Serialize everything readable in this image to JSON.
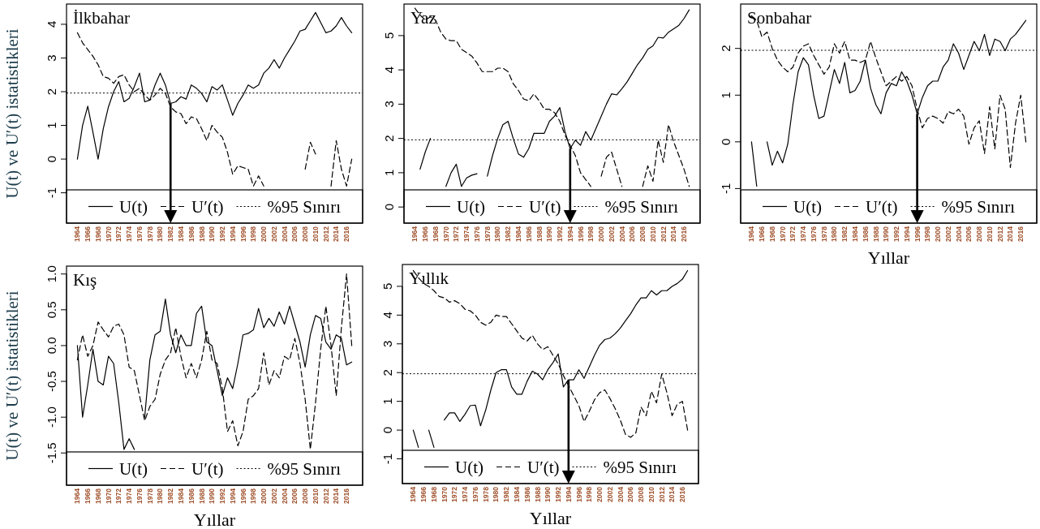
{
  "chart_data": [
    {
      "type": "line",
      "title": "İlkbahar",
      "ylabel": "U(t) ve U′(t) istatistikleri",
      "x": [
        1964,
        1965,
        1966,
        1967,
        1968,
        1969,
        1970,
        1971,
        1972,
        1973,
        1974,
        1975,
        1976,
        1977,
        1978,
        1979,
        1980,
        1981,
        1982,
        1983,
        1984,
        1985,
        1986,
        1987,
        1988,
        1989,
        1990,
        1991,
        1992,
        1993,
        1994,
        1995,
        1996,
        1997,
        1998,
        1999,
        2000,
        2001,
        2002,
        2003,
        2004,
        2005,
        2006,
        2007,
        2008,
        2009,
        2010,
        2011,
        2012,
        2013,
        2014,
        2015,
        2016,
        2017
      ],
      "xlim": [
        1961.9,
        2019.1
      ],
      "xticks": [
        1964,
        1966,
        1968,
        1970,
        1972,
        1974,
        1976,
        1978,
        1980,
        1982,
        1984,
        1986,
        1988,
        1990,
        1992,
        1994,
        1996,
        1998,
        2000,
        2002,
        2004,
        2006,
        2008,
        2010,
        2012,
        2014,
        2016
      ],
      "ylim": [
        -1.9,
        4.6
      ],
      "yticks": [
        -1,
        0,
        1,
        2,
        3,
        4
      ],
      "legend": "bottom",
      "ref_lines": [
        {
          "axis": "y",
          "value": 1.96,
          "label": "%95 Sınırı",
          "line_style": "dotted",
          "color": "#000000"
        },
        {
          "axis": "x",
          "value": 1982,
          "color": "#000000"
        }
      ],
      "series": [
        {
          "name": "U(t)",
          "color": "#000000",
          "line_style": "solid",
          "values": [
            0,
            1.0,
            1.57,
            0.8,
            0,
            0.9,
            1.55,
            2.0,
            2.3,
            1.7,
            1.8,
            2.15,
            2.55,
            1.7,
            1.75,
            2.2,
            2.55,
            2.2,
            1.65,
            1.7,
            1.85,
            1.78,
            2.2,
            2.1,
            1.95,
            1.7,
            2.15,
            2.05,
            2.2,
            1.75,
            1.3,
            1.65,
            1.9,
            2.2,
            2.1,
            2.2,
            2.55,
            2.7,
            2.95,
            2.7,
            3.0,
            3.25,
            3.5,
            3.8,
            3.85,
            4.1,
            4.35,
            4.05,
            3.75,
            3.8,
            3.95,
            4.2,
            3.95,
            3.75
          ]
        },
        {
          "name": "U′(t)",
          "color": "#000000",
          "line_style": "dashed",
          "values": [
            3.75,
            3.45,
            3.25,
            3.05,
            2.8,
            2.45,
            2.4,
            2.25,
            2.45,
            2.5,
            2.2,
            2.0,
            2.1,
            1.9,
            1.75,
            1.9,
            2.1,
            1.95,
            1.55,
            1.4,
            1.35,
            1.05,
            1.25,
            1.2,
            0.9,
            0.55,
            1.0,
            0.8,
            0.65,
            0.2,
            -0.45,
            -0.2,
            -0.25,
            -0.3,
            -0.8,
            -0.5,
            -0.8,
            null,
            null,
            null,
            null,
            null,
            null,
            null,
            -0.3,
            0.5,
            0.15,
            null,
            null,
            -0.8,
            0.55,
            -0.3,
            -0.8,
            0.0
          ]
        }
      ]
    },
    {
      "type": "line",
      "title": "Yaz",
      "x": [
        1964,
        1965,
        1966,
        1967,
        1968,
        1969,
        1970,
        1971,
        1972,
        1973,
        1974,
        1975,
        1976,
        1977,
        1978,
        1979,
        1980,
        1981,
        1982,
        1983,
        1984,
        1985,
        1986,
        1987,
        1988,
        1989,
        1990,
        1991,
        1992,
        1993,
        1994,
        1995,
        1996,
        1997,
        1998,
        1999,
        2000,
        2001,
        2002,
        2003,
        2004,
        2005,
        2006,
        2007,
        2008,
        2009,
        2010,
        2011,
        2012,
        2013,
        2014,
        2015,
        2016,
        2017
      ],
      "xlim": [
        1961.9,
        2019.1
      ],
      "xticks": [
        1964,
        1966,
        1968,
        1970,
        1972,
        1974,
        1976,
        1978,
        1980,
        1982,
        1984,
        1986,
        1988,
        1990,
        1992,
        1994,
        1996,
        1998,
        2000,
        2002,
        2004,
        2006,
        2008,
        2010,
        2012,
        2014,
        2016
      ],
      "ylim": [
        -0.47,
        5.92
      ],
      "yticks": [
        0,
        1,
        2,
        3,
        4,
        5
      ],
      "legend": "bottom",
      "ref_lines": [
        {
          "axis": "y",
          "value": 1.96,
          "label": "%95 Sınırı",
          "line_style": "dotted",
          "color": "#000000"
        },
        {
          "axis": "x",
          "value": 1994,
          "color": "#000000"
        }
      ],
      "series": [
        {
          "name": "U(t)",
          "color": "#000000",
          "line_style": "solid",
          "values": [
            null,
            1.1,
            1.6,
            2.0,
            null,
            null,
            0.6,
            1.0,
            1.25,
            0.6,
            0.85,
            0.93,
            0.97,
            null,
            0.9,
            1.5,
            2.0,
            2.4,
            2.5,
            2.0,
            1.55,
            1.45,
            1.7,
            2.15,
            2.15,
            2.15,
            2.5,
            2.65,
            2.9,
            2.2,
            1.7,
            1.95,
            1.8,
            2.2,
            1.95,
            2.3,
            2.65,
            3.0,
            3.3,
            3.27,
            3.45,
            3.65,
            3.9,
            4.15,
            4.35,
            4.6,
            4.7,
            4.95,
            4.93,
            5.1,
            5.2,
            5.3,
            5.5,
            5.75
          ]
        },
        {
          "name": "U′(t)",
          "color": "#000000",
          "line_style": "dashed",
          "values": [
            5.8,
            5.6,
            5.45,
            5.55,
            5.45,
            5.1,
            4.9,
            4.85,
            4.85,
            4.6,
            4.5,
            4.4,
            4.2,
            3.95,
            3.95,
            3.95,
            4.05,
            4.05,
            3.95,
            3.6,
            3.4,
            3.15,
            3.1,
            3.3,
            3.1,
            2.85,
            2.85,
            2.75,
            2.5,
            2.1,
            1.8,
            1.5,
            1.0,
            0.8,
            0.6,
            null,
            0.9,
            1.45,
            1.6,
            1.1,
            0.6,
            null,
            null,
            null,
            0.6,
            1.2,
            0.75,
            1.95,
            1.3,
            2.4,
            1.9,
            1.5,
            1.1,
            0.6
          ]
        }
      ]
    },
    {
      "type": "line",
      "title": "Sonbahar",
      "xlabel": "Yıllar",
      "x": [
        1964,
        1965,
        1966,
        1967,
        1968,
        1969,
        1970,
        1971,
        1972,
        1973,
        1974,
        1975,
        1976,
        1977,
        1978,
        1979,
        1980,
        1981,
        1982,
        1983,
        1984,
        1985,
        1986,
        1987,
        1988,
        1989,
        1990,
        1991,
        1992,
        1993,
        1994,
        1995,
        1996,
        1997,
        1998,
        1999,
        2000,
        2001,
        2002,
        2003,
        2004,
        2005,
        2006,
        2007,
        2008,
        2009,
        2010,
        2011,
        2012,
        2013,
        2014,
        2015,
        2016,
        2017
      ],
      "xlim": [
        1961.9,
        2019.1
      ],
      "xticks": [
        1964,
        1966,
        1968,
        1970,
        1972,
        1974,
        1976,
        1978,
        1980,
        1982,
        1984,
        1986,
        1988,
        1990,
        1992,
        1994,
        1996,
        1998,
        2000,
        2002,
        2004,
        2006,
        2008,
        2010,
        2012,
        2014,
        2016
      ],
      "ylim": [
        -1.74,
        2.95
      ],
      "yticks": [
        -1,
        0,
        1,
        2
      ],
      "legend": "bottom",
      "ref_lines": [
        {
          "axis": "y",
          "value": 1.96,
          "label": "%95 Sınırı",
          "line_style": "dotted",
          "color": "#000000"
        },
        {
          "axis": "x",
          "value": 1996,
          "color": "#000000"
        }
      ],
      "series": [
        {
          "name": "U(t)",
          "color": "#000000",
          "line_style": "solid",
          "values": [
            0,
            -0.95,
            null,
            0,
            -0.5,
            -0.2,
            -0.45,
            -0.05,
            0.8,
            1.5,
            1.8,
            1.65,
            1.0,
            0.5,
            0.55,
            1.05,
            1.55,
            1.25,
            1.7,
            1.05,
            1.1,
            1.3,
            1.75,
            1.15,
            0.8,
            0.6,
            1.05,
            1.25,
            1.2,
            1.5,
            1.3,
            1.0,
            0.6,
            0.95,
            1.2,
            1.3,
            1.3,
            1.6,
            1.75,
            2.1,
            1.9,
            1.55,
            1.85,
            2.15,
            1.95,
            2.3,
            1.85,
            2.2,
            2.15,
            1.95,
            2.2,
            2.3,
            2.45,
            2.6
          ]
        },
        {
          "name": "U′(t)",
          "color": "#000000",
          "line_style": "dashed",
          "values": [
            2.7,
            2.6,
            2.25,
            2.35,
            2.0,
            1.75,
            1.6,
            1.5,
            1.6,
            1.9,
            2.05,
            2.1,
            1.85,
            1.65,
            1.45,
            1.6,
            2.1,
            1.9,
            2.15,
            1.75,
            1.75,
            1.7,
            1.75,
            2.15,
            1.8,
            1.5,
            1.2,
            1.3,
            1.4,
            1.3,
            1.4,
            1.2,
            0.7,
            0.3,
            0.5,
            0.55,
            0.5,
            0.4,
            0.65,
            0.6,
            0.7,
            0.55,
            -0.05,
            0.3,
            0.45,
            -0.25,
            0.75,
            -0.15,
            1.0,
            0.7,
            -0.55,
            0.4,
            1.0,
            0.0
          ]
        }
      ]
    },
    {
      "type": "line",
      "title": "Kış",
      "xlabel": "Yıllar",
      "ylabel": "U(t) ve U′(t) istatistikleri",
      "x": [
        1964,
        1965,
        1966,
        1967,
        1968,
        1969,
        1970,
        1971,
        1972,
        1973,
        1974,
        1975,
        1976,
        1977,
        1978,
        1979,
        1980,
        1981,
        1982,
        1983,
        1984,
        1985,
        1986,
        1987,
        1988,
        1989,
        1990,
        1991,
        1992,
        1993,
        1994,
        1995,
        1996,
        1997,
        1998,
        1999,
        2000,
        2001,
        2002,
        2003,
        2004,
        2005,
        2006,
        2007,
        2008,
        2009,
        2010,
        2011,
        2012,
        2013,
        2014,
        2015,
        2016,
        2017
      ],
      "xlim": [
        1961.9,
        2019.1
      ],
      "xticks": [
        1964,
        1966,
        1968,
        1970,
        1972,
        1974,
        1976,
        1978,
        1980,
        1982,
        1984,
        1986,
        1988,
        1990,
        1992,
        1994,
        1996,
        1998,
        2000,
        2002,
        2004,
        2006,
        2008,
        2010,
        2012,
        2014,
        2016
      ],
      "ylim": [
        -1.95,
        1.11
      ],
      "yticks": [
        -1.5,
        {
          "value": -1,
          "label": "-1.0"
        },
        -0.5,
        {
          "value": 0,
          "label": "0.0"
        },
        0.5,
        {
          "value": 1,
          "label": "1.0"
        }
      ],
      "legend": "bottom",
      "annotations": [
        "%95 Sınırı"
      ],
      "series": [
        {
          "name": "U(t)",
          "color": "#000000",
          "line_style": "solid",
          "values": [
            0.0,
            -1.0,
            -0.55,
            -0.05,
            -0.5,
            -0.55,
            -0.15,
            -0.25,
            -0.8,
            -1.45,
            -1.3,
            -1.45,
            null,
            -1.0,
            -0.2,
            0.15,
            0.2,
            0.65,
            0.15,
            -0.1,
            0.15,
            0.0,
            0.0,
            0.45,
            0.55,
            0.05,
            0.0,
            -0.35,
            -0.7,
            -0.45,
            -0.6,
            -0.25,
            0.15,
            0.17,
            0.22,
            0.52,
            0.25,
            0.38,
            0.27,
            0.47,
            0.3,
            0.55,
            0.3,
            0.05,
            -0.3,
            0.15,
            0.42,
            0.38,
            0.05,
            -0.05,
            0.15,
            0.1,
            -0.27,
            -0.23
          ]
        },
        {
          "name": "U′(t)",
          "color": "#000000",
          "line_style": "dashed",
          "values": [
            -0.2,
            0.15,
            -0.15,
            0.0,
            0.33,
            0.22,
            0.12,
            0.27,
            0.3,
            0.15,
            -0.3,
            -0.35,
            -0.7,
            -1.05,
            -0.85,
            -0.75,
            -0.4,
            -0.2,
            -0.1,
            0.25,
            -0.15,
            -0.45,
            -0.25,
            -0.45,
            -0.2,
            0.2,
            -0.2,
            -0.25,
            -0.6,
            -1.2,
            -1.05,
            -1.4,
            -1.2,
            -0.75,
            -0.7,
            -0.6,
            -0.1,
            -0.55,
            -0.35,
            -0.45,
            -0.15,
            -0.2,
            0.1,
            -0.25,
            -0.75,
            -1.45,
            -0.8,
            -0.05,
            0.55,
            0.0,
            -0.7,
            0.25,
            1.0,
            0.0
          ]
        }
      ]
    },
    {
      "type": "line",
      "title": "Yıllık",
      "xlabel": "Yıllar",
      "x": [
        1964,
        1965,
        1966,
        1967,
        1968,
        1969,
        1970,
        1971,
        1972,
        1973,
        1974,
        1975,
        1976,
        1977,
        1978,
        1979,
        1980,
        1981,
        1982,
        1983,
        1984,
        1985,
        1986,
        1987,
        1988,
        1989,
        1990,
        1991,
        1992,
        1993,
        1994,
        1995,
        1996,
        1997,
        1998,
        1999,
        2000,
        2001,
        2002,
        2003,
        2004,
        2005,
        2006,
        2007,
        2008,
        2009,
        2010,
        2011,
        2012,
        2013,
        2014,
        2015,
        2016,
        2017
      ],
      "xlim": [
        1961.9,
        2019.1
      ],
      "xticks": [
        1964,
        1966,
        1968,
        1970,
        1972,
        1974,
        1976,
        1978,
        1980,
        1982,
        1984,
        1986,
        1988,
        1990,
        1992,
        1994,
        1996,
        1998,
        2000,
        2002,
        2004,
        2006,
        2008,
        2010,
        2012,
        2014,
        2016
      ],
      "ylim": [
        -1.86,
        5.76
      ],
      "yticks": [
        -1,
        0,
        1,
        2,
        3,
        4,
        5
      ],
      "legend": "bottom",
      "ref_lines": [
        {
          "axis": "y",
          "value": 1.96,
          "label": "%95 Sınırı",
          "line_style": "dotted",
          "color": "#000000"
        },
        {
          "axis": "x",
          "value": 1994,
          "color": "#000000"
        }
      ],
      "series": [
        {
          "name": "U(t)",
          "color": "#000000",
          "line_style": "solid",
          "values": [
            0.0,
            -0.6,
            null,
            0.0,
            -0.6,
            null,
            0.35,
            0.6,
            0.6,
            0.3,
            0.55,
            0.85,
            0.87,
            0.15,
            0.7,
            1.4,
            2.0,
            2.1,
            2.1,
            1.5,
            1.25,
            1.25,
            1.7,
            2.05,
            1.95,
            1.75,
            2.1,
            2.35,
            2.65,
            1.5,
            1.75,
            1.75,
            2.1,
            1.8,
            2.2,
            2.6,
            2.95,
            3.15,
            3.2,
            3.35,
            3.55,
            3.8,
            4.05,
            4.35,
            4.6,
            4.6,
            4.85,
            4.7,
            4.85,
            4.85,
            5.0,
            5.1,
            5.25,
            5.55
          ]
        },
        {
          "name": "U′(t)",
          "color": "#000000",
          "line_style": "dashed",
          "values": [
            5.55,
            5.3,
            5.1,
            5.0,
            4.85,
            4.65,
            4.6,
            4.45,
            4.5,
            4.4,
            4.2,
            4.15,
            4.0,
            3.75,
            3.65,
            3.75,
            4.0,
            3.95,
            3.95,
            3.7,
            3.45,
            3.2,
            3.1,
            3.3,
            3.0,
            2.8,
            2.9,
            2.6,
            2.3,
            1.9,
            1.55,
            1.2,
            0.85,
            0.3,
            0.65,
            1.05,
            1.3,
            1.4,
            1.1,
            0.75,
            0.35,
            -0.15,
            -0.25,
            -0.1,
            0.8,
            0.5,
            1.35,
            0.95,
            1.95,
            1.3,
            0.5,
            0.9,
            1.0,
            0.0
          ]
        }
      ]
    }
  ]
}
